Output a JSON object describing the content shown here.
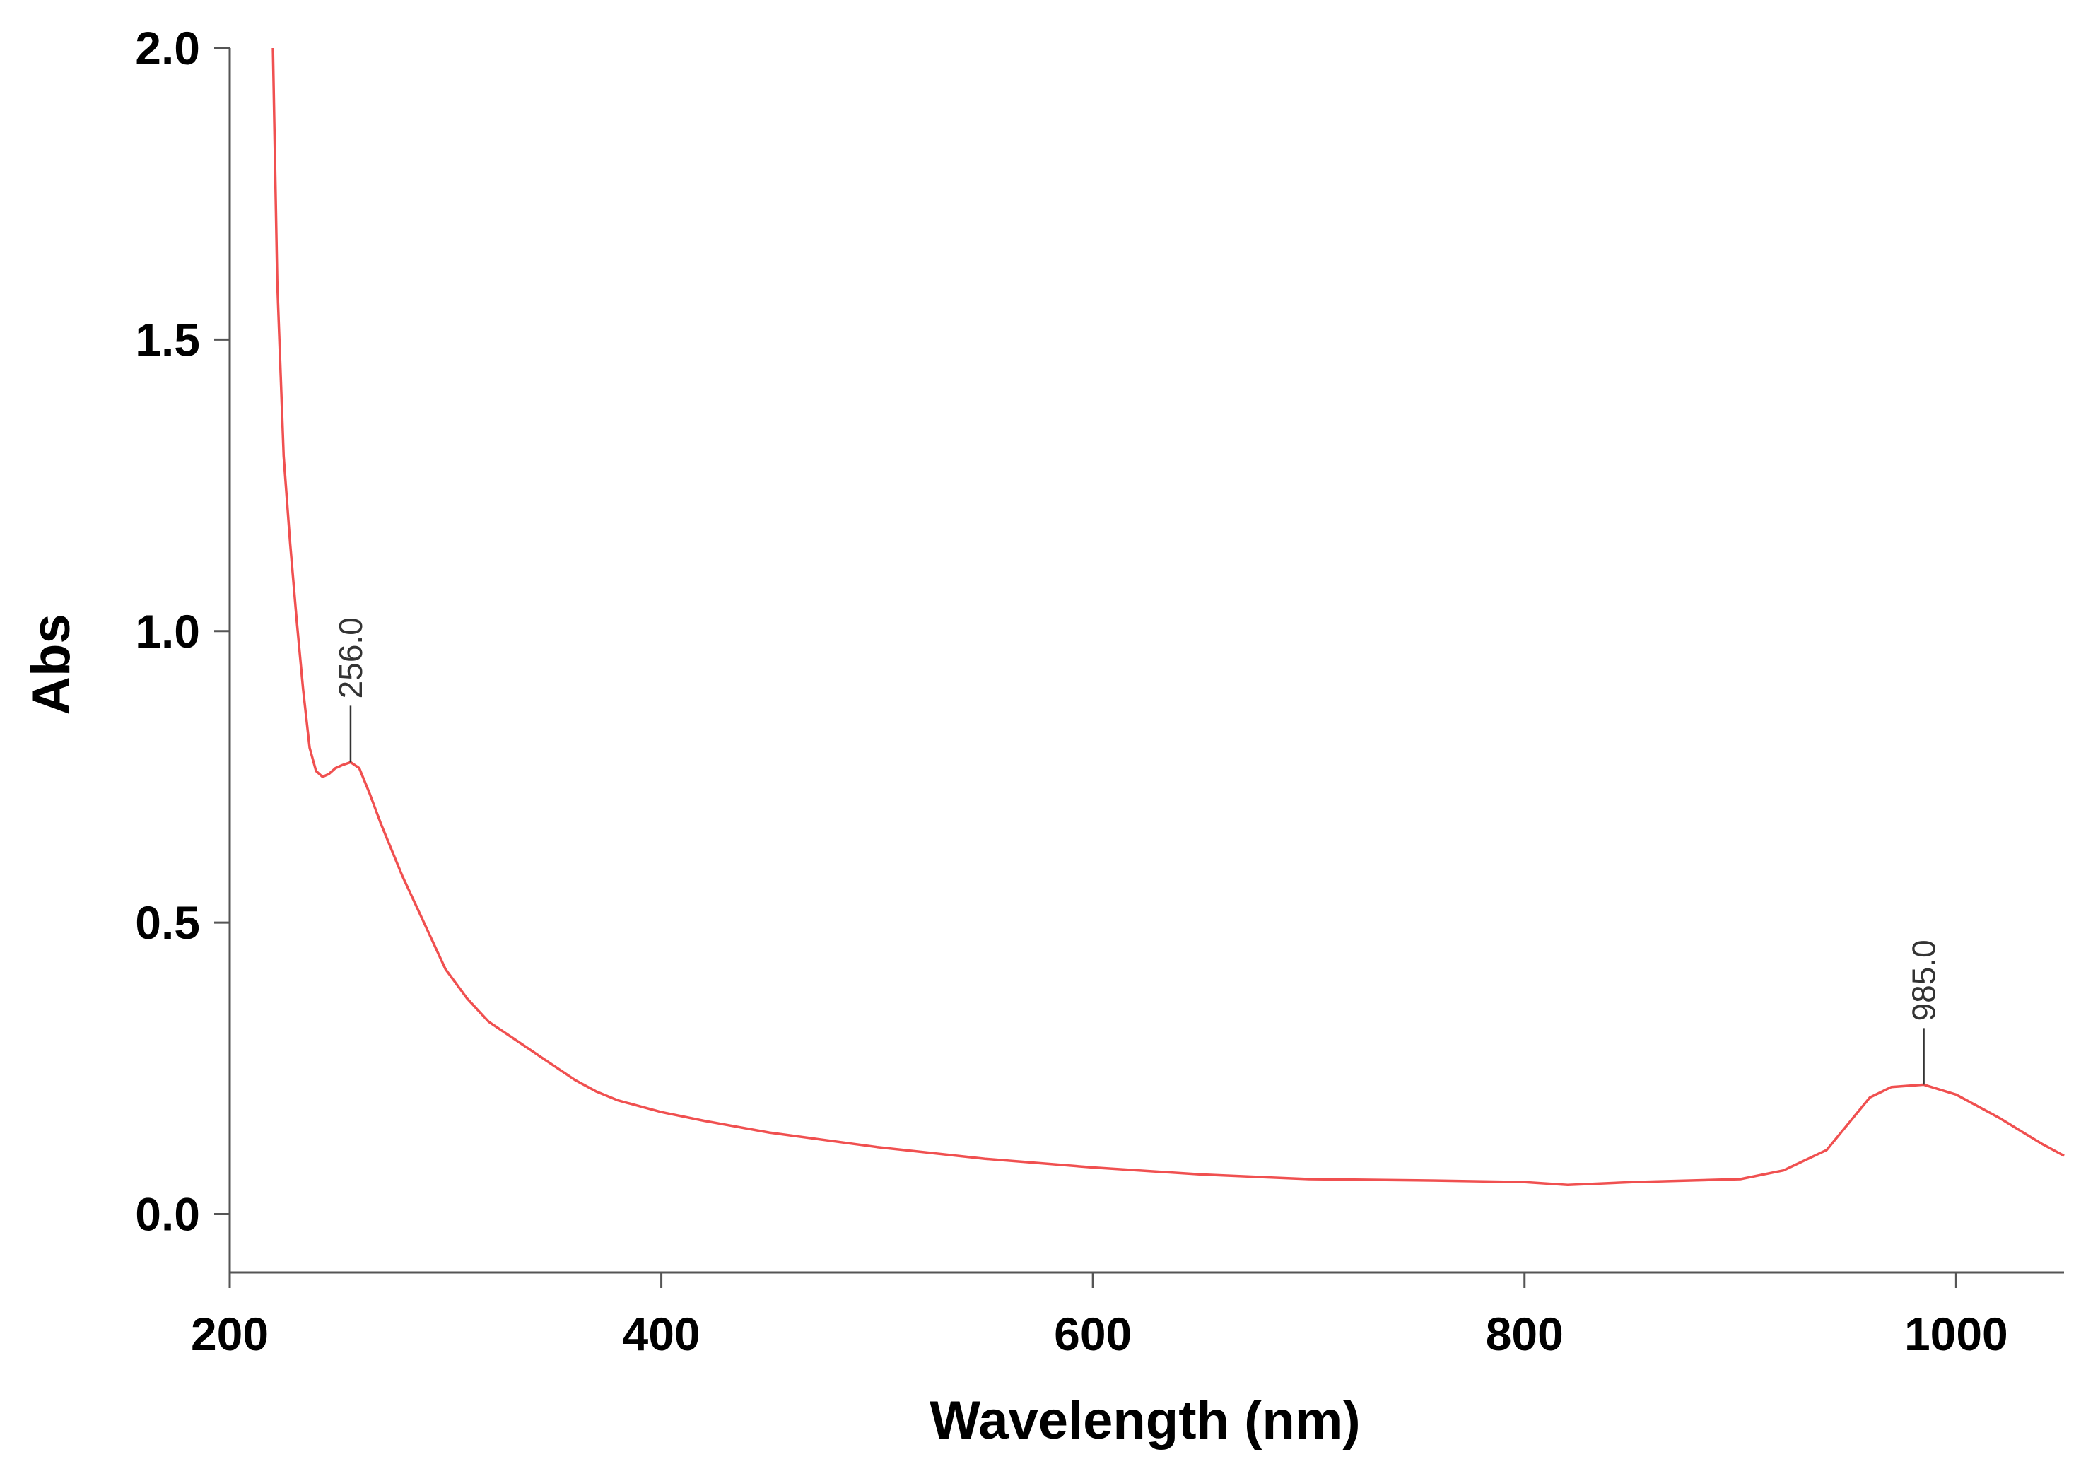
{
  "chart_data": {
    "type": "line",
    "title": "",
    "xlabel": "Wavelength (nm)",
    "ylabel": "Abs",
    "xlim": [
      200,
      1050
    ],
    "ylim": [
      -0.1,
      2.0
    ],
    "x_ticks": [
      200,
      400,
      600,
      800,
      1000
    ],
    "y_ticks": [
      0.0,
      0.5,
      1.0,
      1.5,
      2.0
    ],
    "x_tick_labels": [
      "200",
      "400",
      "600",
      "800",
      "1000"
    ],
    "y_tick_labels": [
      "0.0",
      "0.5",
      "1.0",
      "1.5",
      "2.0"
    ],
    "grid": false,
    "legend": "none",
    "series": [
      {
        "color": "#f05050",
        "x": [
          220,
          222,
          225,
          228,
          231,
          234,
          237,
          240,
          243,
          246,
          249,
          252,
          256,
          260,
          265,
          270,
          280,
          290,
          300,
          310,
          320,
          330,
          340,
          350,
          360,
          370,
          380,
          400,
          420,
          450,
          500,
          550,
          600,
          650,
          700,
          750,
          800,
          820,
          850,
          900,
          920,
          940,
          950,
          960,
          970,
          985,
          1000,
          1020,
          1040,
          1050
        ],
        "y": [
          2.0,
          1.6,
          1.3,
          1.15,
          1.02,
          0.9,
          0.8,
          0.76,
          0.75,
          0.755,
          0.765,
          0.77,
          0.775,
          0.765,
          0.72,
          0.67,
          0.58,
          0.5,
          0.42,
          0.37,
          0.33,
          0.305,
          0.28,
          0.255,
          0.23,
          0.21,
          0.195,
          0.175,
          0.16,
          0.14,
          0.115,
          0.095,
          0.08,
          0.068,
          0.06,
          0.058,
          0.055,
          0.05,
          0.055,
          0.06,
          0.075,
          0.11,
          0.155,
          0.2,
          0.218,
          0.222,
          0.205,
          0.165,
          0.12,
          0.1
        ]
      }
    ],
    "annotations": [
      {
        "text": "256.0",
        "x": 256,
        "y": 0.775
      },
      {
        "text": "985.0",
        "x": 985,
        "y": 0.222
      }
    ]
  }
}
